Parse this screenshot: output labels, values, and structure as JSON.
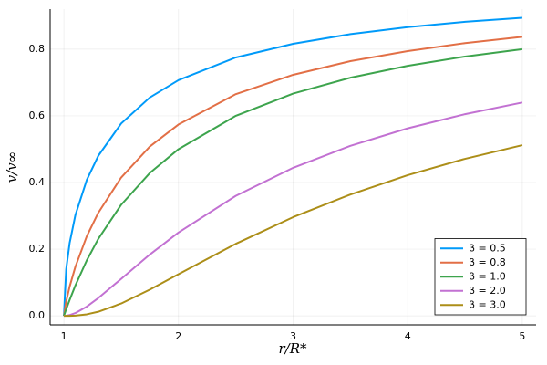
{
  "chart_data": {
    "type": "line",
    "x_label": "r/R*",
    "y_label": "v/v∞",
    "x": [
      1,
      1.02,
      1.05,
      1.1,
      1.2,
      1.3,
      1.5,
      1.75,
      2,
      2.5,
      3,
      3.5,
      4,
      4.5,
      5
    ],
    "series": [
      {
        "name": "β = 0.5",
        "color": "#009af9",
        "values": [
          0,
          0.14,
          0.218,
          0.302,
          0.408,
          0.48,
          0.577,
          0.655,
          0.707,
          0.775,
          0.816,
          0.845,
          0.866,
          0.882,
          0.894
        ]
      },
      {
        "name": "β = 0.8",
        "color": "#e26f46",
        "values": [
          0,
          0.043,
          0.0875,
          0.147,
          0.239,
          0.309,
          0.415,
          0.508,
          0.574,
          0.665,
          0.723,
          0.764,
          0.794,
          0.818,
          0.837
        ]
      },
      {
        "name": "β = 1.0",
        "color": "#3da44d",
        "values": [
          0,
          0.0196,
          0.0476,
          0.0909,
          0.1667,
          0.2308,
          0.3333,
          0.4286,
          0.5,
          0.6,
          0.6667,
          0.7143,
          0.75,
          0.7778,
          0.8
        ]
      },
      {
        "name": "β = 2.0",
        "color": "#c271d2",
        "values": [
          0,
          0.0004,
          0.0023,
          0.0083,
          0.0278,
          0.0533,
          0.111,
          0.184,
          0.25,
          0.36,
          0.444,
          0.51,
          0.5625,
          0.605,
          0.64
        ]
      },
      {
        "name": "β = 3.0",
        "color": "#ac8e18",
        "values": [
          0,
          0,
          0.0001,
          0.00075,
          0.0046,
          0.0123,
          0.037,
          0.0787,
          0.125,
          0.216,
          0.296,
          0.364,
          0.422,
          0.471,
          0.512
        ]
      }
    ],
    "xlim": [
      0.88,
      5.12
    ],
    "ylim": [
      -0.027,
      0.92
    ],
    "xticks": [
      1,
      2,
      3,
      4,
      5
    ],
    "yticks": [
      {
        "value": 0,
        "label": "0.0"
      },
      0.2,
      0.4,
      0.6,
      0.8
    ],
    "grid": true,
    "legend": "bottom-right"
  }
}
